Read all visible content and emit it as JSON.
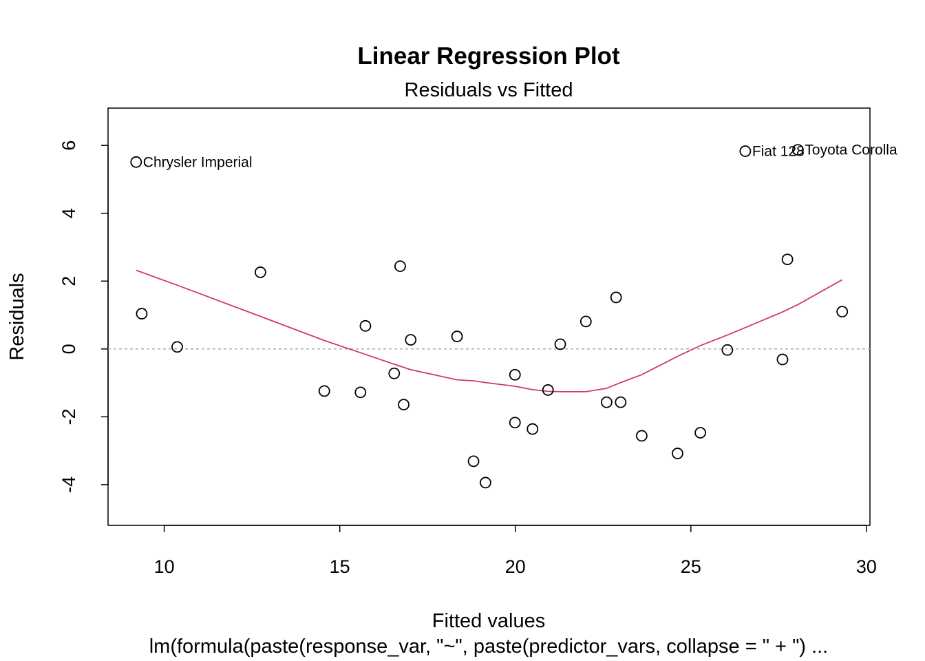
{
  "chart_data": {
    "type": "scatter",
    "title": "Linear Regression Plot",
    "subtitle": "Residuals vs Fitted",
    "xlabel": "Fitted values",
    "ylabel": "Residuals",
    "caption": "lm(formula(paste(response_var, \"~\", paste(predictor_vars, collapse = \" + \") ...",
    "xlim": [
      8.4,
      30.1
    ],
    "ylim": [
      -5.2,
      7.1
    ],
    "x_ticks": [
      10,
      15,
      20,
      25,
      30
    ],
    "y_ticks": [
      -4,
      -2,
      0,
      2,
      4,
      6
    ],
    "grid": false,
    "reference_line": {
      "y": 0,
      "color": "#aaaaaa",
      "style": "dashed"
    },
    "smooth_color": "#d03c5a",
    "point_color": "#000000",
    "points": [
      {
        "x": 9.2,
        "y": 5.51,
        "label": "Chrysler Imperial"
      },
      {
        "x": 9.36,
        "y": 1.04
      },
      {
        "x": 10.37,
        "y": 0.06
      },
      {
        "x": 12.74,
        "y": 2.26
      },
      {
        "x": 14.56,
        "y": -1.24
      },
      {
        "x": 15.59,
        "y": -1.28
      },
      {
        "x": 15.73,
        "y": 0.68
      },
      {
        "x": 16.55,
        "y": -0.72
      },
      {
        "x": 16.72,
        "y": 2.44
      },
      {
        "x": 16.82,
        "y": -1.64
      },
      {
        "x": 17.02,
        "y": 0.27
      },
      {
        "x": 18.34,
        "y": 0.37
      },
      {
        "x": 18.81,
        "y": -3.31
      },
      {
        "x": 19.15,
        "y": -3.94
      },
      {
        "x": 19.99,
        "y": -0.76
      },
      {
        "x": 19.99,
        "y": -2.17
      },
      {
        "x": 20.49,
        "y": -2.36
      },
      {
        "x": 20.93,
        "y": -1.21
      },
      {
        "x": 21.28,
        "y": 0.14
      },
      {
        "x": 22.01,
        "y": 0.81
      },
      {
        "x": 22.6,
        "y": -1.57
      },
      {
        "x": 22.87,
        "y": 1.52
      },
      {
        "x": 23.0,
        "y": -1.57
      },
      {
        "x": 23.6,
        "y": -2.56
      },
      {
        "x": 24.62,
        "y": -3.08
      },
      {
        "x": 25.27,
        "y": -2.47
      },
      {
        "x": 26.04,
        "y": -0.03
      },
      {
        "x": 26.55,
        "y": 5.83,
        "label": "Fiat 128"
      },
      {
        "x": 27.61,
        "y": -0.31
      },
      {
        "x": 27.75,
        "y": 2.64
      },
      {
        "x": 28.05,
        "y": 5.87,
        "label": "Toyota Corolla"
      },
      {
        "x": 29.31,
        "y": 1.1
      }
    ],
    "smooth": [
      {
        "x": 9.2,
        "y": 2.32
      },
      {
        "x": 10.37,
        "y": 1.88
      },
      {
        "x": 12.74,
        "y": 0.96
      },
      {
        "x": 14.56,
        "y": 0.25
      },
      {
        "x": 15.73,
        "y": -0.16
      },
      {
        "x": 16.55,
        "y": -0.45
      },
      {
        "x": 17.02,
        "y": -0.61
      },
      {
        "x": 18.34,
        "y": -0.91
      },
      {
        "x": 18.81,
        "y": -0.94
      },
      {
        "x": 19.15,
        "y": -0.99
      },
      {
        "x": 19.99,
        "y": -1.1
      },
      {
        "x": 20.49,
        "y": -1.2
      },
      {
        "x": 20.93,
        "y": -1.25
      },
      {
        "x": 21.28,
        "y": -1.26
      },
      {
        "x": 22.01,
        "y": -1.26
      },
      {
        "x": 22.6,
        "y": -1.16
      },
      {
        "x": 23.0,
        "y": -0.99
      },
      {
        "x": 23.6,
        "y": -0.76
      },
      {
        "x": 24.62,
        "y": -0.22
      },
      {
        "x": 25.27,
        "y": 0.1
      },
      {
        "x": 26.04,
        "y": 0.41
      },
      {
        "x": 26.55,
        "y": 0.63
      },
      {
        "x": 27.61,
        "y": 1.09
      },
      {
        "x": 28.05,
        "y": 1.31
      },
      {
        "x": 29.31,
        "y": 2.04
      }
    ]
  }
}
